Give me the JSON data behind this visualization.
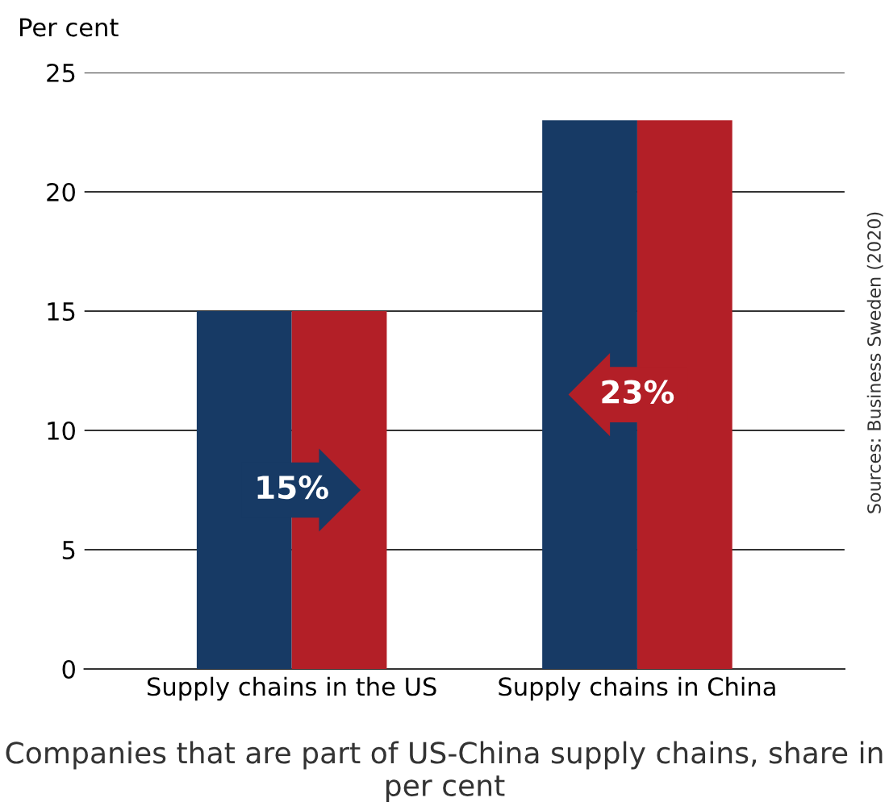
{
  "chart_data": {
    "type": "bar",
    "title": "Companies that are part of US-China supply chains, share in per cent",
    "ylabel": "Per cent",
    "categories": [
      "Supply chains in the US",
      "Supply chains in China"
    ],
    "series": [
      {
        "color": "#173a65",
        "values": [
          15,
          23
        ],
        "value_labels": [
          "15%",
          null
        ]
      },
      {
        "color": "#b31f27",
        "values": [
          15,
          23
        ],
        "value_labels": [
          null,
          "23%"
        ]
      }
    ],
    "ylim": [
      0,
      25
    ],
    "yticks": [
      0,
      5,
      10,
      15,
      20,
      25
    ],
    "grid": "y",
    "annotations": [
      "Sources: Business Sweden (2020)"
    ]
  }
}
